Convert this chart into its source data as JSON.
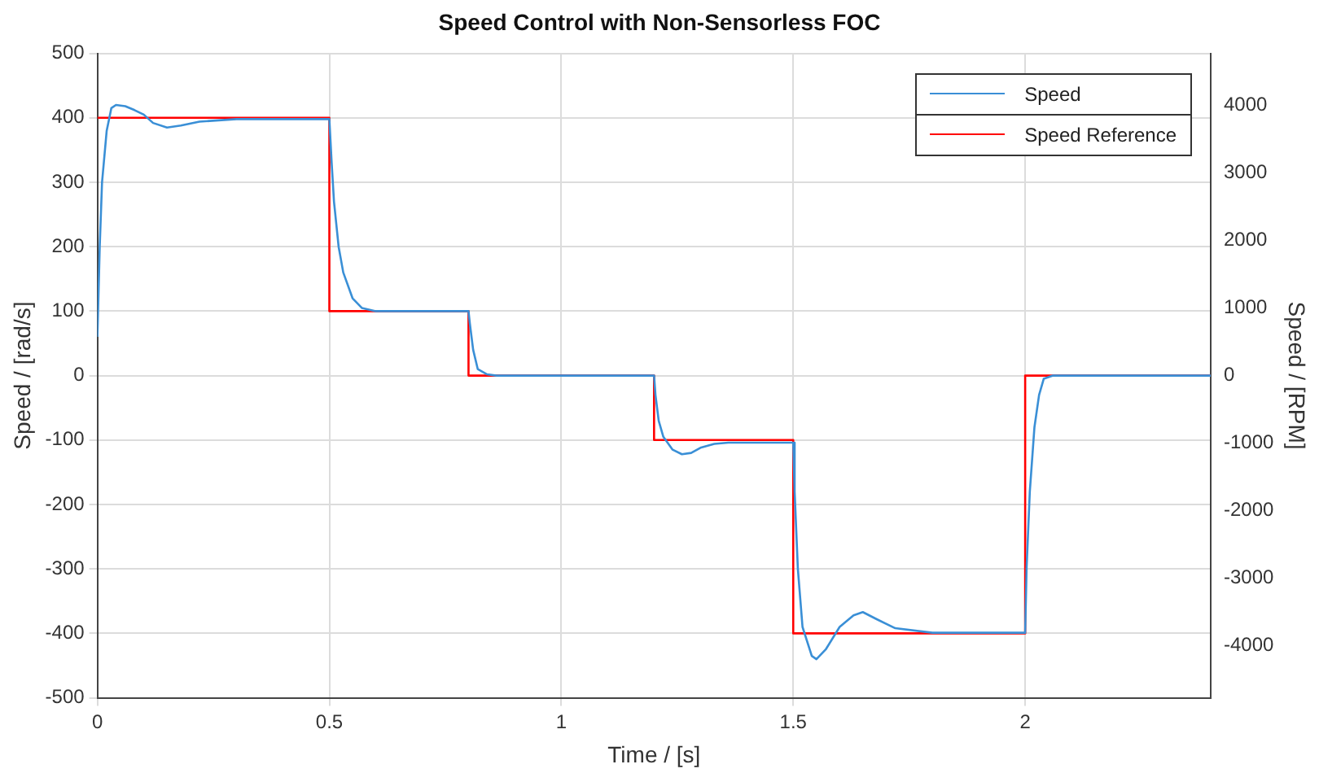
{
  "chart_data": {
    "type": "line",
    "title": "Speed Control with Non-Sensorless FOC",
    "xlabel": "Time / [s]",
    "ylabel": "Speed / [rad/s]",
    "y2label": "Speed / [RPM]",
    "xlim": [
      0,
      2.4
    ],
    "xticks": [
      0,
      0.5,
      1,
      1.5,
      2
    ],
    "ylim": [
      -500,
      500
    ],
    "yticks": [
      -500,
      -400,
      -300,
      -200,
      -100,
      0,
      100,
      200,
      300,
      400,
      500
    ],
    "y2lim": [
      -4774.6,
      4774.6
    ],
    "y2ticks": [
      -4000,
      -3000,
      -2000,
      -1000,
      0,
      1000,
      2000,
      3000,
      4000
    ],
    "grid": true,
    "legend": "top right",
    "marker": "none",
    "line_style": "solid",
    "series": [
      {
        "name": "Speed",
        "type": "line",
        "color": "#3a8fd6",
        "x": [
          0,
          0.005,
          0.01,
          0.02,
          0.03,
          0.04,
          0.06,
          0.08,
          0.1,
          0.12,
          0.15,
          0.18,
          0.22,
          0.3,
          0.5,
          0.505,
          0.51,
          0.52,
          0.53,
          0.55,
          0.57,
          0.6,
          0.8,
          0.803,
          0.81,
          0.82,
          0.84,
          0.86,
          1.2,
          1.203,
          1.21,
          1.22,
          1.24,
          1.26,
          1.28,
          1.3,
          1.33,
          1.36,
          1.5,
          1.503,
          1.51,
          1.52,
          1.54,
          1.55,
          1.57,
          1.6,
          1.63,
          1.65,
          1.68,
          1.72,
          1.8,
          2.0,
          2.003,
          2.01,
          2.02,
          2.03,
          2.04,
          2.06,
          2.4
        ],
        "values": [
          60,
          200,
          300,
          380,
          415,
          420,
          418,
          412,
          405,
          392,
          385,
          388,
          394,
          398,
          398,
          330,
          270,
          200,
          160,
          120,
          105,
          100,
          100,
          80,
          40,
          10,
          2,
          0,
          0,
          -30,
          -70,
          -95,
          -115,
          -122,
          -120,
          -112,
          -106,
          -104,
          -104,
          -180,
          -300,
          -390,
          -435,
          -440,
          -425,
          -390,
          -372,
          -367,
          -378,
          -392,
          -399,
          -399,
          -300,
          -180,
          -80,
          -30,
          -5,
          0,
          0
        ]
      },
      {
        "name": "Speed Reference",
        "type": "step",
        "color": "#ff0000",
        "x": [
          0,
          0.5,
          0.8,
          1.2,
          1.5,
          2.0,
          2.4
        ],
        "values": [
          400,
          100,
          0,
          -100,
          -400,
          0,
          0
        ]
      }
    ]
  }
}
